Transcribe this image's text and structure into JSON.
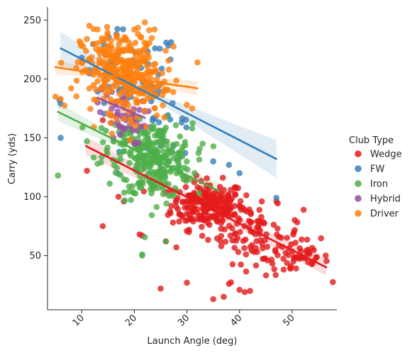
{
  "chart_data": {
    "type": "scatter",
    "title": "",
    "xlabel": "Launch Angle (deg)",
    "ylabel": "Carry (yds)",
    "xlim": [
      3.5,
      58.5
    ],
    "ylim": [
      4,
      261
    ],
    "xticks": [
      10,
      20,
      30,
      40,
      50
    ],
    "yticks": [
      50,
      100,
      150,
      200,
      250
    ],
    "grid": false,
    "legend": {
      "title": "Club Type",
      "position": "right"
    },
    "series": [
      {
        "name": "Wedge",
        "color": "#e41a1c",
        "fit": {
          "x0": 10.8,
          "x1": 56.5,
          "y0": 143,
          "y1": 40
        },
        "band": [
          [
            10.8,
            8
          ],
          [
            33,
            3
          ],
          [
            56.5,
            7
          ]
        ],
        "clusters": [
          {
            "n": 220,
            "cx": 34,
            "cy": 93,
            "sx": 3.5,
            "sy": 10
          },
          {
            "n": 90,
            "cx": 43,
            "cy": 68,
            "sx": 4.5,
            "sy": 12
          },
          {
            "n": 50,
            "cx": 51,
            "cy": 48,
            "sx": 3,
            "sy": 8
          }
        ],
        "points": [
          [
            11,
            122
          ],
          [
            14,
            75
          ],
          [
            21,
            68
          ],
          [
            21.5,
            67
          ],
          [
            25,
            22
          ],
          [
            30,
            27
          ],
          [
            35,
            13
          ],
          [
            37,
            15
          ],
          [
            38,
            26
          ],
          [
            40,
            21
          ],
          [
            41,
            19
          ],
          [
            42,
            20
          ],
          [
            28,
            57
          ],
          [
            26,
            62
          ],
          [
            14,
            165
          ],
          [
            18,
            96
          ],
          [
            17,
            100
          ]
        ]
      },
      {
        "name": "FW",
        "color": "#377eb8",
        "fit": {
          "x0": 6,
          "x1": 47,
          "y0": 226,
          "y1": 132
        },
        "band": [
          [
            6,
            14
          ],
          [
            24,
            3
          ],
          [
            47,
            16
          ]
        ],
        "clusters": [
          {
            "n": 70,
            "cx": 19,
            "cy": 200,
            "sx": 5,
            "sy": 20
          },
          {
            "n": 20,
            "cx": 26,
            "cy": 150,
            "sx": 4,
            "sy": 12
          }
        ],
        "points": [
          [
            6,
            150
          ],
          [
            6,
            179
          ],
          [
            10,
            218
          ],
          [
            38,
            127
          ],
          [
            40,
            120
          ],
          [
            47,
            99
          ],
          [
            35,
            130
          ],
          [
            29,
            163
          ]
        ]
      },
      {
        "name": "Iron",
        "color": "#4daf4a",
        "fit": {
          "x0": 5.5,
          "x1": 36,
          "y0": 172,
          "y1": 105
        },
        "band": [
          [
            5.5,
            8
          ],
          [
            22,
            3
          ],
          [
            36,
            7
          ]
        ],
        "clusters": [
          {
            "n": 260,
            "cx": 24,
            "cy": 130,
            "sx": 3.5,
            "sy": 16
          },
          {
            "n": 40,
            "cx": 18,
            "cy": 148,
            "sx": 3,
            "sy": 10
          }
        ],
        "points": [
          [
            5.5,
            118
          ],
          [
            21.5,
            50
          ],
          [
            21.5,
            51
          ],
          [
            26,
            62
          ],
          [
            11,
            147
          ],
          [
            33,
            145
          ],
          [
            31,
            158
          ],
          [
            13,
            128
          ]
        ]
      },
      {
        "name": "Hybrid",
        "color": "#984ea3",
        "fit": {
          "x0": 13,
          "x1": 22,
          "y0": 184,
          "y1": 167
        },
        "band": [
          [
            13,
            6
          ],
          [
            17,
            3
          ],
          [
            22,
            6
          ]
        ],
        "clusters": [
          {
            "n": 45,
            "cx": 17.5,
            "cy": 168,
            "sx": 2.2,
            "sy": 12
          }
        ],
        "points": [
          [
            13,
            180
          ],
          [
            20,
            166
          ],
          [
            22,
            160
          ],
          [
            16,
            150
          ]
        ]
      },
      {
        "name": "Driver",
        "color": "#ff7f0e",
        "fit": {
          "x0": 5,
          "x1": 32,
          "y0": 210,
          "y1": 192
        },
        "band": [
          [
            5,
            6
          ],
          [
            18,
            2
          ],
          [
            32,
            6
          ]
        ],
        "clusters": [
          {
            "n": 300,
            "cx": 17.5,
            "cy": 207,
            "sx": 3.8,
            "sy": 17
          },
          {
            "n": 40,
            "cx": 23,
            "cy": 192,
            "sx": 3,
            "sy": 15
          }
        ],
        "points": [
          [
            5,
            185
          ],
          [
            6,
            183
          ],
          [
            22,
            248
          ],
          [
            20,
            242
          ],
          [
            13,
            242
          ],
          [
            32,
            214
          ],
          [
            30,
            178
          ],
          [
            31,
            175
          ],
          [
            8,
            192
          ]
        ]
      }
    ]
  }
}
